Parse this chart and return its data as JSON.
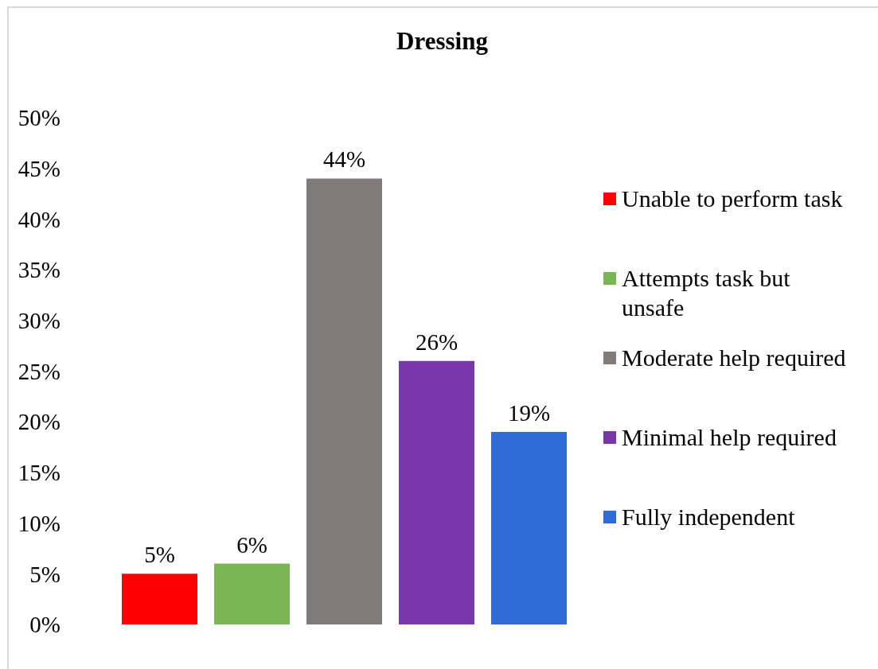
{
  "chart_data": {
    "type": "bar",
    "title": "Dressing",
    "categories": [
      null
    ],
    "series": [
      {
        "name": "Unable to perform task",
        "color": "#ff0000",
        "values": [
          5
        ],
        "value_labels": [
          "5%"
        ]
      },
      {
        "name": "Attempts task but unsafe",
        "color": "#7ab554",
        "values": [
          6
        ],
        "value_labels": [
          "6%"
        ]
      },
      {
        "name": "Moderate help required",
        "color": "#7f7b7b",
        "values": [
          44
        ],
        "value_labels": [
          "44%"
        ]
      },
      {
        "name": "Minimal help required",
        "color": "#7936a8",
        "values": [
          26
        ],
        "value_labels": [
          "26%"
        ]
      },
      {
        "name": "Fully independent",
        "color": "#2f6bd5",
        "values": [
          19
        ],
        "value_labels": [
          "19%"
        ]
      }
    ],
    "ylim": [
      0,
      50
    ],
    "yticks": [
      {
        "value": 0,
        "label": "0%"
      },
      {
        "value": 5,
        "label": "5%"
      },
      {
        "value": 10,
        "label": "10%"
      },
      {
        "value": 15,
        "label": "15%"
      },
      {
        "value": 20,
        "label": "20%"
      },
      {
        "value": 25,
        "label": "25%"
      },
      {
        "value": 30,
        "label": "30%"
      },
      {
        "value": 35,
        "label": "35%"
      },
      {
        "value": 40,
        "label": "40%"
      },
      {
        "value": 45,
        "label": "45%"
      },
      {
        "value": 50,
        "label": "50%"
      }
    ],
    "legend": "right",
    "tick_labels": "y"
  }
}
